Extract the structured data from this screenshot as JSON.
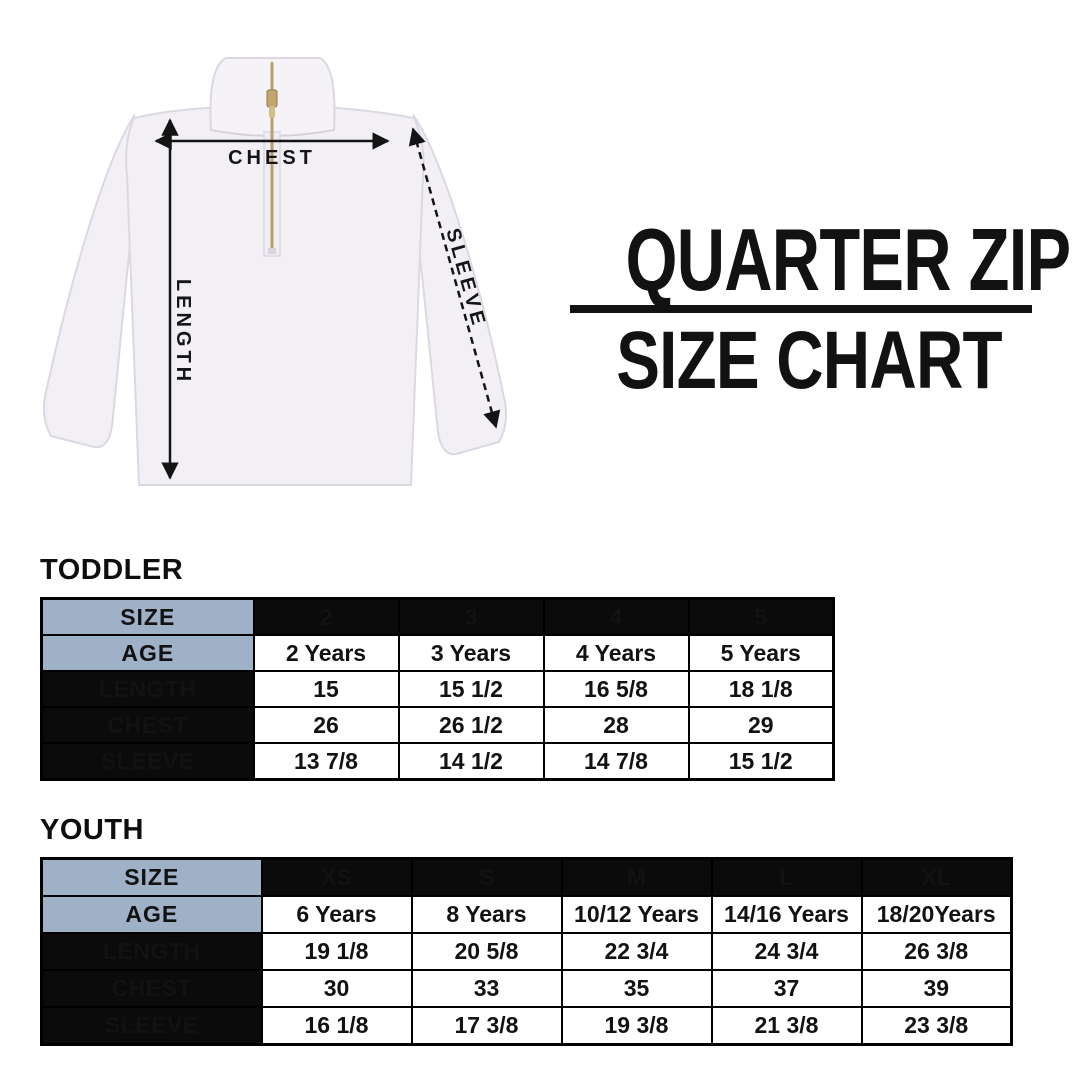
{
  "title": {
    "line1": "QUARTER ZIP",
    "line2": "SIZE CHART"
  },
  "diagram": {
    "description": "white quarter zip pullover with measurement arrows",
    "labels": {
      "chest": "CHEST",
      "length": "LENGTH",
      "sleeve": "SLEEVE"
    }
  },
  "tables": [
    {
      "section": "TODDLER",
      "size_label": "SIZE",
      "age_label": "AGE",
      "sizes": [
        "2",
        "3",
        "4",
        "5"
      ],
      "ages": [
        "2 Years",
        "3 Years",
        "4 Years",
        "5 Years"
      ],
      "measurements": [
        {
          "label": "LENGTH",
          "values": [
            "15",
            "15 1/2",
            "16 5/8",
            "18 1/8"
          ]
        },
        {
          "label": "CHEST",
          "values": [
            "26",
            "26 1/2",
            "28",
            "29"
          ]
        },
        {
          "label": "SLEEVE",
          "values": [
            "13 7/8",
            "14 1/2",
            "14 7/8",
            "15 1/2"
          ]
        }
      ]
    },
    {
      "section": "YOUTH",
      "size_label": "SIZE",
      "age_label": "AGE",
      "sizes": [
        "XS",
        "S",
        "M",
        "L",
        "XL"
      ],
      "ages": [
        "6 Years",
        "8 Years",
        "10/12 Years",
        "14/16 Years",
        "18/20Years"
      ],
      "measurements": [
        {
          "label": "LENGTH",
          "values": [
            "19 1/8",
            "20 5/8",
            "22 3/4",
            "24 3/4",
            "26 3/8"
          ]
        },
        {
          "label": "CHEST",
          "values": [
            "30",
            "33",
            "35",
            "37",
            "39"
          ]
        },
        {
          "label": "SLEEVE",
          "values": [
            "16 1/8",
            "17 3/8",
            "19 3/8",
            "21 3/8",
            "23 3/8"
          ]
        }
      ]
    }
  ],
  "colors": {
    "header_blue": "#9fb1c7",
    "cell_black": "#0b0b0b",
    "title_black": "#121212",
    "fabric_white": "#f2f0f5",
    "zipper_gold": "#c2a86e"
  }
}
